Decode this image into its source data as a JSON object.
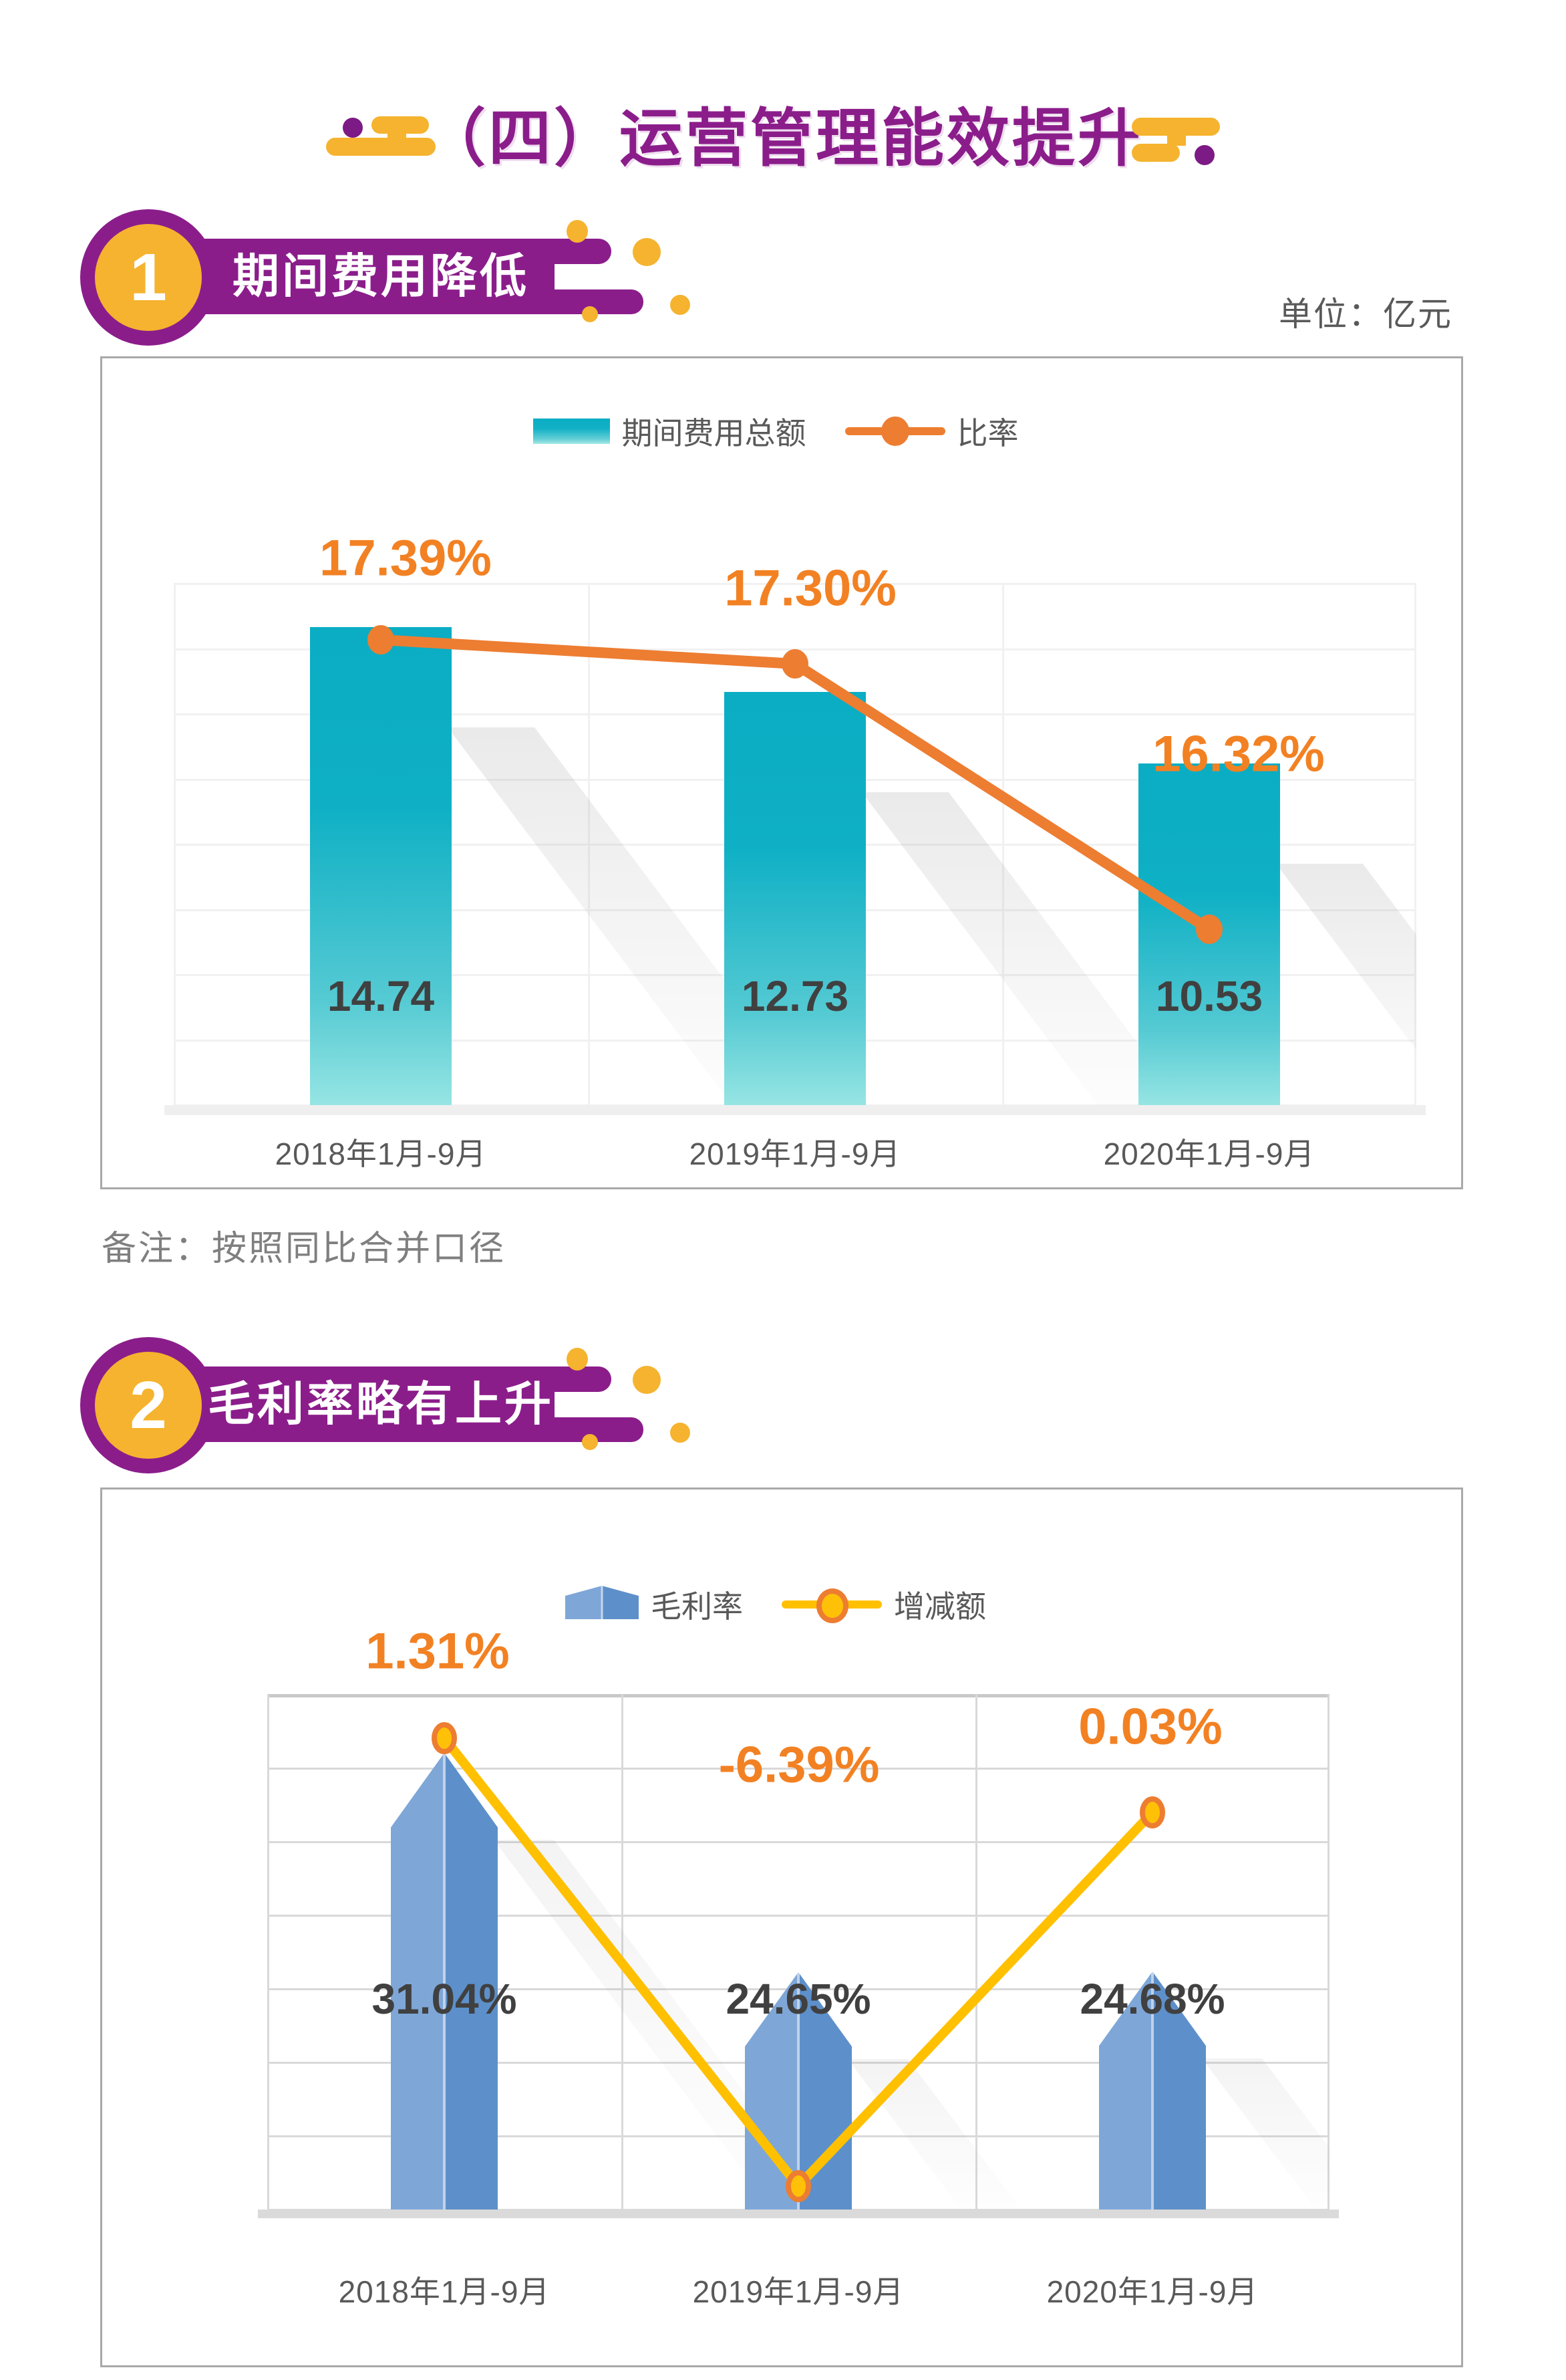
{
  "page_title": "（四）运营管理能效提升",
  "unit_label": "单位：亿元",
  "note": "备注：按照同比合并口径",
  "sections": [
    {
      "number": "1",
      "title": "期间费用降低"
    },
    {
      "number": "2",
      "title": "毛利率略有上升"
    }
  ],
  "colors": {
    "purple": "#8b1d8b",
    "yellow": "#f5b32f",
    "teal_bar": "#0aadc4",
    "orange_line": "#ed7d31",
    "orange_label": "#f28123",
    "blue_bar_left": "#7ea7d8",
    "blue_bar_right": "#5d90ca",
    "yellow_line": "#ffc000",
    "gray_text": "#595959"
  },
  "chart_data": [
    {
      "type": "bar",
      "combo": "bar+line",
      "title": "期间费用降低",
      "unit": "亿元",
      "categories": [
        "2018年1月-9月",
        "2019年1月-9月",
        "2020年1月-9月"
      ],
      "series": [
        {
          "name": "期间费用总额",
          "kind": "bar",
          "values": [
            14.74,
            12.73,
            10.53
          ],
          "labels": [
            "14.74",
            "12.73",
            "10.53"
          ]
        },
        {
          "name": "比率",
          "kind": "line",
          "values": [
            17.39,
            17.3,
            16.32
          ],
          "labels": [
            "17.39%",
            "17.30%",
            "16.32%"
          ]
        }
      ],
      "grid": true,
      "legend_position": "top"
    },
    {
      "type": "bar",
      "combo": "bar+line",
      "title": "毛利率略有上升",
      "categories": [
        "2018年1月-9月",
        "2019年1月-9月",
        "2020年1月-9月"
      ],
      "series": [
        {
          "name": "毛利率",
          "kind": "bar",
          "values": [
            31.04,
            24.65,
            24.68
          ],
          "labels": [
            "31.04%",
            "24.65%",
            "24.68%"
          ]
        },
        {
          "name": "增减额",
          "kind": "line",
          "values": [
            1.31,
            -6.39,
            0.03
          ],
          "labels": [
            "1.31%",
            "-6.39%",
            "0.03%"
          ]
        }
      ],
      "grid": true,
      "legend_position": "top"
    }
  ]
}
